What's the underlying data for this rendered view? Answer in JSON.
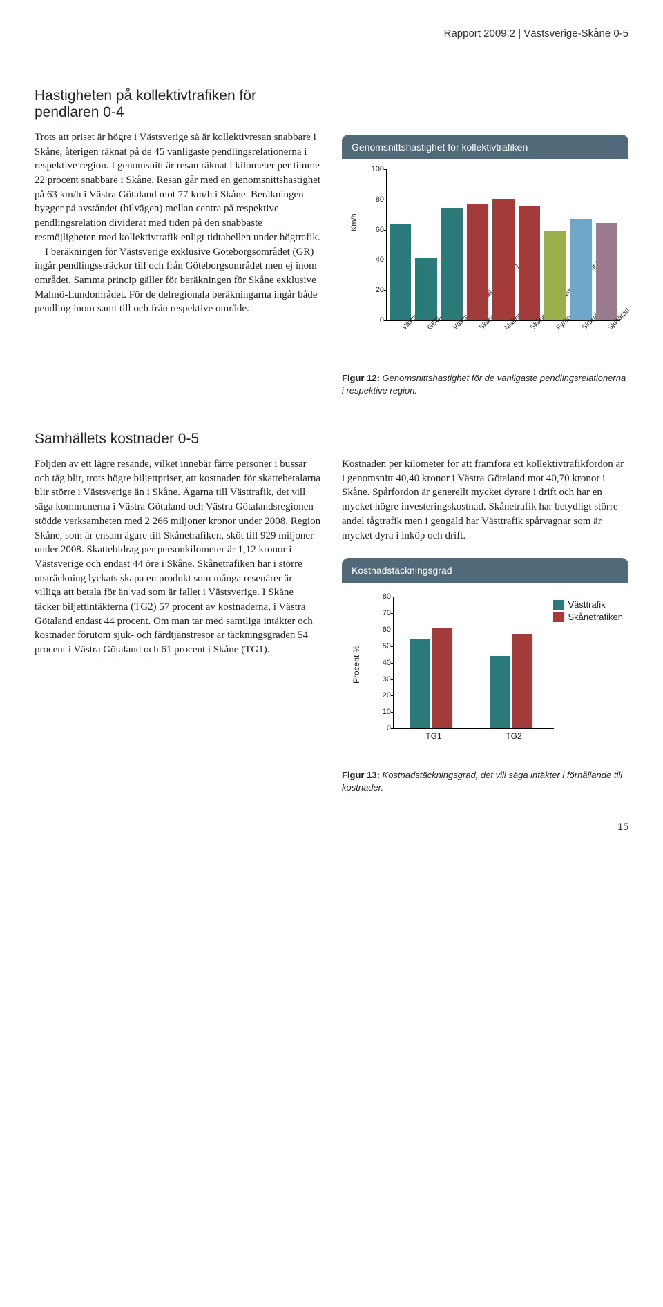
{
  "header": "Rapport 2009:2 | Västsverige-Skåne 0-5",
  "section1": {
    "title": "Hastigheten på kollektivtrafiken för pendlaren 0-4",
    "p1": "Trots att priset är högre i Västsverige så är kollektivresan snabbare i Skåne, återigen räknat på de 45 vanligaste pendlingsrelationerna i respektive region. I genomsnitt är resan räknat i kilometer per timme 22 procent snabbare i Skåne. Resan går med en genomsnittshastighet på 63 km/h i Västra Götaland mot 77 km/h i Skåne. Beräkningen bygger på avståndet (bilvägen) mellan centra på respektive pendlingsrelation dividerat med tiden på den snabbaste resmöjligheten med kollektivtrafik enligt tidtabellen under högtrafik.",
    "p2": "I beräkningen för Västsverige exklusive Göteborgsområdet (GR) ingår pendlingssträckor till och från Göteborgsområdet men ej inom området. Samma princip gäller för beräkningen för Skåne exklusive Malmö-Lundområdet. För de delregionala beräkningarna ingår både pendling inom samt till och från respektive område."
  },
  "chart1": {
    "title": "Genomsnittshastighet för kollektivtrafiken",
    "type": "bar",
    "ylabel": "Km/h",
    "ylim": [
      0,
      100
    ],
    "ytick_step": 20,
    "categories": [
      "Västsverige",
      "GBG-området",
      "Västsverige (exkl. GBG-omr.)",
      "Skåne",
      "Malmöområdet",
      "Skåne (exkl. Malmö-Lundomr.)",
      "Fyrbodal",
      "Skaraborg",
      "Sjuhärad"
    ],
    "values": [
      63,
      41,
      74,
      77,
      80,
      75,
      59,
      67,
      64
    ],
    "bar_colors": [
      "#2a7a7a",
      "#2a7a7a",
      "#2a7a7a",
      "#a43b3b",
      "#a43b3b",
      "#a43b3b",
      "#9aaf4a",
      "#6da6c9",
      "#9d7b8e"
    ],
    "background_color": "#ffffff",
    "header_bg": "#506a7a",
    "header_fg": "#ffffff",
    "caption_bold": "Figur 12:",
    "caption_text": "Genomsnittshastighet för de vanligaste pendlingsrelationerna i respektive region."
  },
  "section2": {
    "title": "Samhällets kostnader 0-5",
    "left": "Följden av ett lägre resande, vilket innebär färre personer i bussar och tåg blir, trots högre biljettpriser, att kostnaden för skattebetalarna blir större i Västsverige än i Skåne. Ägarna till Västtrafik, det vill säga kommunerna i Västra Götaland och Västra Götalandsregionen stödde verksamheten med 2 266 miljoner kronor under 2008. Region Skåne, som är ensam ägare till Skånetrafiken, sköt till 929 miljoner under 2008. Skattebidrag per personkilometer är 1,12 kronor i Västsverige och endast 44 öre i Skåne. Skånetrafiken har i större utsträckning lyckats skapa en produkt som många resenärer är villiga att betala för än vad som är fallet i Västsverige. I Skåne täcker biljettintäkterna (TG2) 57 procent av kostnaderna, i Västra Götaland endast 44 procent. Om man tar med samtliga intäkter och kostnader förutom sjuk- och färdtjänstresor är täckningsgraden 54 procent i Västra Götaland och 61 procent i Skåne (TG1).",
    "right": "Kostnaden per kilometer för att framföra ett kollektivtrafikfordon är i genomsnitt 40,40 kronor i Västra Götaland mot 40,70 kronor i Skåne. Spårfordon är generellt mycket dyrare i drift och har en mycket högre investeringskostnad. Skånetrafik har betydligt större andel tågtrafik men i gengäld har Västtrafik spårvagnar som är mycket dyra i inköp och drift."
  },
  "chart2": {
    "title": "Kostnadstäckningsgrad",
    "type": "grouped-bar",
    "ylabel": "Procent %",
    "ylim": [
      0,
      80
    ],
    "ytick_step": 10,
    "groups": [
      "TG1",
      "TG2"
    ],
    "series": [
      {
        "name": "Västtrafik",
        "color": "#2a7a7a",
        "values": [
          54,
          44
        ]
      },
      {
        "name": "Skånetrafiken",
        "color": "#a43b3b",
        "values": [
          61,
          57
        ]
      }
    ],
    "swatch_colors": [
      "#2a7a7a",
      "#a43b3b"
    ],
    "background_color": "#ffffff",
    "header_bg": "#506a7a",
    "header_fg": "#ffffff",
    "caption_bold": "Figur 13:",
    "caption_text": "Kostnadstäckningsgrad, det vill säga intäkter i förhållande till kostnader."
  },
  "page_number": "15"
}
